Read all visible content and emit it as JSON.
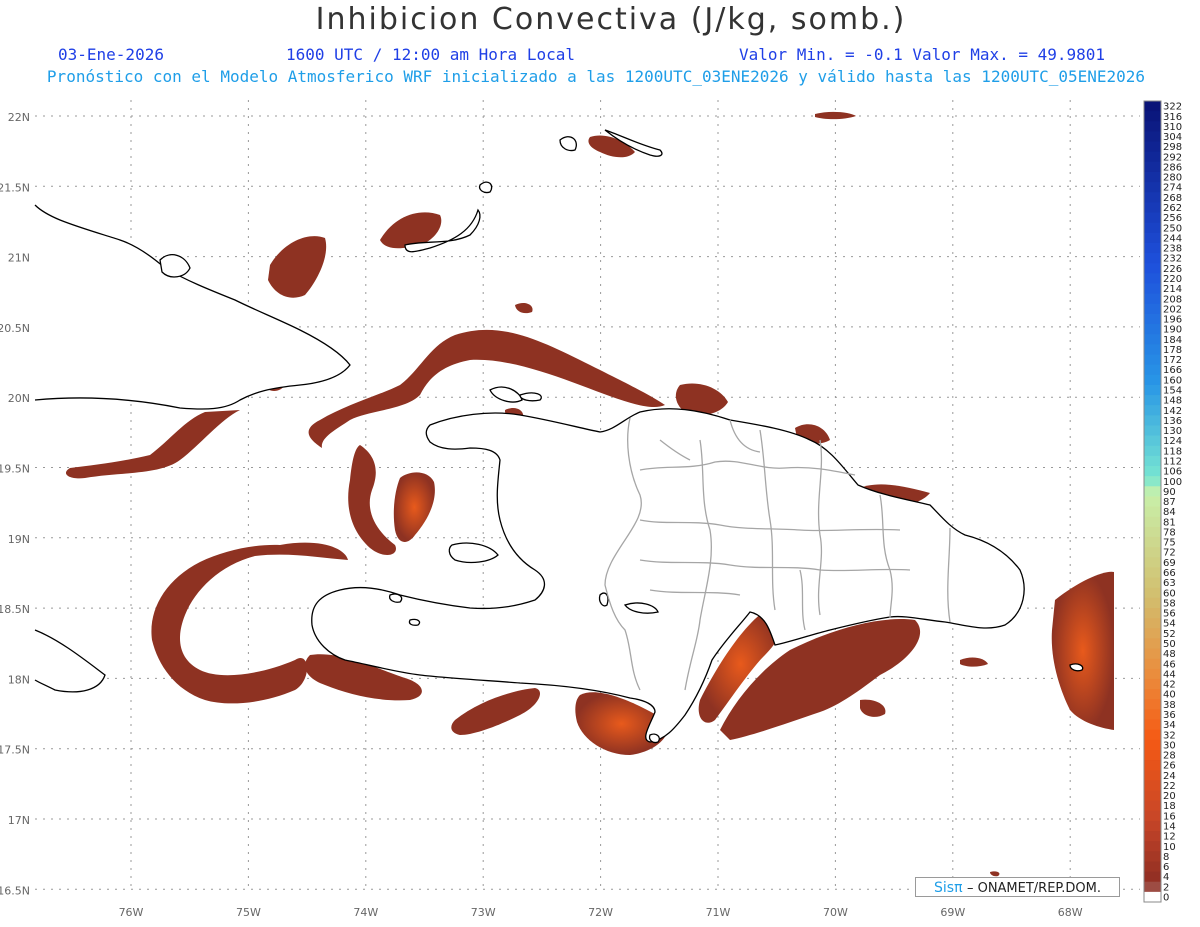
{
  "header": {
    "title": "Inhibicion Convectiva (J/kg, somb.)",
    "date": "03-Ene-2026",
    "time": "1600 UTC / 12:00 am Hora Local",
    "minmax": "Valor Min. = -0.1  Valor Max. = 49.9801",
    "subtitle": "Pronóstico con el Modelo Atmosferico WRF inicializado a las 1200UTC_03ENE2026 y válido hasta las  1200UTC_05ENE2026"
  },
  "map": {
    "lat_labels": [
      "22N",
      "21.5N",
      "21N",
      "20.5N",
      "20N",
      "19.5N",
      "19N",
      "18.5N",
      "18N",
      "17.5N",
      "17N",
      "16.5N"
    ],
    "lon_labels": [
      "76W",
      "75W",
      "74W",
      "73W",
      "72W",
      "71W",
      "70W",
      "69W",
      "68W"
    ],
    "field_color": "#8e3222",
    "field_peak_color": "#e85a1c",
    "land_fill": "#ffffff",
    "coast_color": "#000000",
    "border_color": "#a6a6a6"
  },
  "colorbar": {
    "labels": [
      "322",
      "316",
      "310",
      "304",
      "298",
      "292",
      "286",
      "280",
      "274",
      "268",
      "262",
      "256",
      "250",
      "244",
      "238",
      "232",
      "226",
      "220",
      "214",
      "208",
      "202",
      "196",
      "190",
      "184",
      "178",
      "172",
      "166",
      "160",
      "154",
      "148",
      "142",
      "136",
      "130",
      "124",
      "118",
      "112",
      "106",
      "100",
      "90",
      "87",
      "84",
      "81",
      "78",
      "75",
      "72",
      "69",
      "66",
      "63",
      "60",
      "58",
      "56",
      "54",
      "52",
      "50",
      "48",
      "46",
      "44",
      "42",
      "40",
      "38",
      "36",
      "34",
      "32",
      "30",
      "28",
      "26",
      "24",
      "22",
      "20",
      "18",
      "16",
      "14",
      "12",
      "10",
      "8",
      "6",
      "4",
      "2",
      "0"
    ]
  },
  "credit": {
    "sis": "Sisπ",
    "org": "– ONAMET/REP.DOM."
  }
}
